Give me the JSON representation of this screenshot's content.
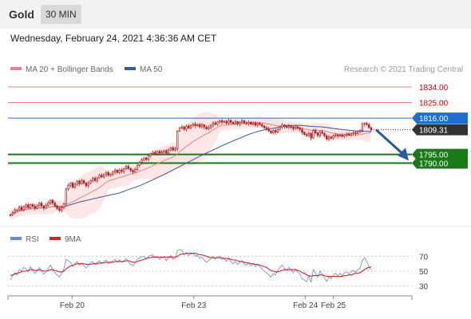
{
  "header": {
    "instrument": "Gold",
    "interval": "30 MIN",
    "timestamp": "Wednesday, February 24, 2021 4:36:36 AM CET"
  },
  "legend": {
    "ma20": "MA 20 + Bollinger Bands",
    "ma50": "MA 50",
    "credit": "Research © 2021 Trading Central",
    "rsi": "RSI",
    "ma9": "9MA"
  },
  "colors": {
    "ma20": "#f08080",
    "ma50": "#3a5a9a",
    "band_fill": "#fbe0e0",
    "candle": "#b22222",
    "resistance": "#f08080",
    "pivot": "#1e6fd0",
    "support": "#1a7a1a",
    "current": "#333333",
    "arrow": "#2a5aa0",
    "rsi": "#6688dd",
    "rsi_ma": "#dd2222"
  },
  "chart_data": [
    {
      "type": "candlestick",
      "title": "",
      "ylim": [
        1758,
        1840
      ],
      "x_tick_labels": [
        "Feb 20",
        "Feb 23",
        "Feb 24",
        "Feb 25"
      ],
      "levels": [
        {
          "value": 1834.0,
          "label": "1834.00",
          "kind": "resistance"
        },
        {
          "value": 1825.0,
          "label": "1825.00",
          "kind": "resistance"
        },
        {
          "value": 1816.0,
          "label": "1816.00",
          "kind": "pivot"
        },
        {
          "value": 1809.31,
          "label": "1809.31",
          "kind": "current"
        },
        {
          "value": 1795.0,
          "label": "1795.00",
          "kind": "support"
        },
        {
          "value": 1790.0,
          "label": "1790.00",
          "kind": "support"
        }
      ],
      "close": [
        1760.2,
        1761.5,
        1762.8,
        1763.0,
        1764.5,
        1763.1,
        1764.8,
        1765.9,
        1764.2,
        1766.0,
        1765.1,
        1763.9,
        1765.5,
        1766.8,
        1765.2,
        1764.0,
        1765.7,
        1767.0,
        1768.5,
        1766.9,
        1765.4,
        1763.8,
        1762.7,
        1764.2,
        1766.5,
        1775.0,
        1777.2,
        1778.5,
        1776.0,
        1777.8,
        1779.6,
        1778.1,
        1779.9,
        1778.5,
        1777.0,
        1778.4,
        1779.8,
        1781.2,
        1780.0,
        1781.5,
        1783.0,
        1782.1,
        1783.4,
        1784.5,
        1782.9,
        1783.5,
        1784.8,
        1785.9,
        1784.6,
        1786.0,
        1785.2,
        1786.7,
        1788.1,
        1786.9,
        1785.8,
        1784.9,
        1786.3,
        1788.8,
        1790.5,
        1791.8,
        1793.0,
        1792.1,
        1794.4,
        1795.5,
        1796.3,
        1795.4,
        1796.8,
        1795.9,
        1796.5,
        1797.2,
        1795.8,
        1797.5,
        1798.9,
        1797.6,
        1798.2,
        1808.5,
        1810.2,
        1811.0,
        1809.6,
        1811.4,
        1810.3,
        1811.8,
        1812.5,
        1811.6,
        1812.3,
        1811.0,
        1812.1,
        1810.9,
        1809.8,
        1810.6,
        1811.9,
        1813.2,
        1812.4,
        1813.8,
        1814.5,
        1813.6,
        1814.2,
        1813.1,
        1814.7,
        1813.5,
        1812.8,
        1813.9,
        1812.7,
        1813.5,
        1814.4,
        1813.3,
        1812.9,
        1813.6,
        1812.4,
        1813.2,
        1812.0,
        1813.0,
        1812.2,
        1811.4,
        1810.5,
        1809.8,
        1808.6,
        1807.5,
        1808.8,
        1807.9,
        1809.6,
        1810.8,
        1812.0,
        1811.2,
        1810.6,
        1811.5,
        1810.8,
        1809.9,
        1811.0,
        1810.2,
        1809.5,
        1807.8,
        1806.5,
        1805.9,
        1807.2,
        1804.5,
        1808.8,
        1807.5,
        1806.0,
        1808.1,
        1807.2,
        1805.8,
        1803.9,
        1805.1,
        1804.4,
        1805.8,
        1806.3,
        1805.7,
        1806.2,
        1805.5,
        1806.4,
        1806.9,
        1806.1,
        1807.0,
        1807.6,
        1807.1,
        1808.2,
        1808.8,
        1812.5,
        1813.0,
        1812.2,
        1810.5,
        1809.31
      ]
    },
    {
      "type": "line",
      "title": "",
      "ylim": [
        20,
        80
      ],
      "y_tick_labels": [
        "70",
        "50",
        "30"
      ],
      "y_ticks": [
        70,
        50,
        30
      ],
      "x_tick_labels": [
        "Feb 20",
        "Feb 23",
        "Feb 24",
        "Feb 25"
      ],
      "series": [
        {
          "name": "RSI",
          "values": [
            38,
            44,
            48,
            45,
            52,
            50,
            55,
            53,
            49,
            56,
            52,
            47,
            51,
            55,
            50,
            46,
            49,
            54,
            58,
            52,
            48,
            45,
            42,
            47,
            53,
            66,
            64,
            62,
            56,
            60,
            63,
            58,
            61,
            57,
            54,
            58,
            61,
            63,
            59,
            62,
            64,
            60,
            63,
            65,
            60,
            61,
            64,
            66,
            62,
            65,
            62,
            64,
            67,
            62,
            59,
            57,
            61,
            66,
            68,
            69,
            70,
            66,
            70,
            71,
            72,
            68,
            70,
            66,
            68,
            69,
            64,
            68,
            71,
            66,
            67,
            78,
            79,
            78,
            72,
            75,
            71,
            73,
            74,
            70,
            71,
            67,
            69,
            65,
            62,
            64,
            67,
            70,
            66,
            69,
            70,
            66,
            67,
            63,
            67,
            63,
            60,
            63,
            59,
            62,
            64,
            60,
            58,
            61,
            57,
            60,
            56,
            59,
            56,
            53,
            50,
            48,
            45,
            42,
            47,
            45,
            51,
            55,
            58,
            54,
            51,
            55,
            52,
            48,
            53,
            49,
            46,
            40,
            38,
            36,
            44,
            35,
            52,
            47,
            42,
            50,
            46,
            41,
            36,
            42,
            40,
            45,
            47,
            44,
            47,
            44,
            48,
            49,
            46,
            50,
            51,
            48,
            52,
            54,
            64,
            68,
            63,
            56,
            52
          ]
        },
        {
          "name": "9MA",
          "values": [
            44,
            45,
            46,
            47,
            48,
            49,
            50,
            50,
            51,
            52,
            52,
            51,
            51,
            52,
            51,
            50,
            50,
            51,
            52,
            52,
            51,
            50,
            49,
            49,
            50,
            53,
            55,
            57,
            58,
            59,
            60,
            60,
            60,
            60,
            59,
            59,
            59,
            60,
            60,
            60,
            61,
            61,
            61,
            62,
            62,
            62,
            62,
            63,
            63,
            63,
            63,
            63,
            64,
            64,
            63,
            62,
            62,
            63,
            64,
            65,
            66,
            67,
            68,
            68,
            69,
            69,
            69,
            69,
            69,
            69,
            69,
            69,
            69,
            69,
            69,
            70,
            72,
            73,
            73,
            74,
            74,
            74,
            74,
            74,
            73,
            72,
            72,
            71,
            70,
            69,
            68,
            68,
            68,
            68,
            68,
            68,
            67,
            67,
            67,
            66,
            65,
            65,
            64,
            63,
            63,
            62,
            61,
            61,
            60,
            60,
            59,
            59,
            58,
            57,
            56,
            55,
            53,
            51,
            50,
            49,
            49,
            50,
            51,
            52,
            52,
            52,
            52,
            52,
            52,
            51,
            50,
            48,
            47,
            45,
            44,
            43,
            44,
            44,
            44,
            45,
            45,
            44,
            43,
            43,
            43,
            43,
            43,
            43,
            43,
            43,
            44,
            44,
            45,
            45,
            46,
            47,
            47,
            48,
            50,
            52,
            54,
            55,
            56
          ]
        }
      ]
    }
  ]
}
